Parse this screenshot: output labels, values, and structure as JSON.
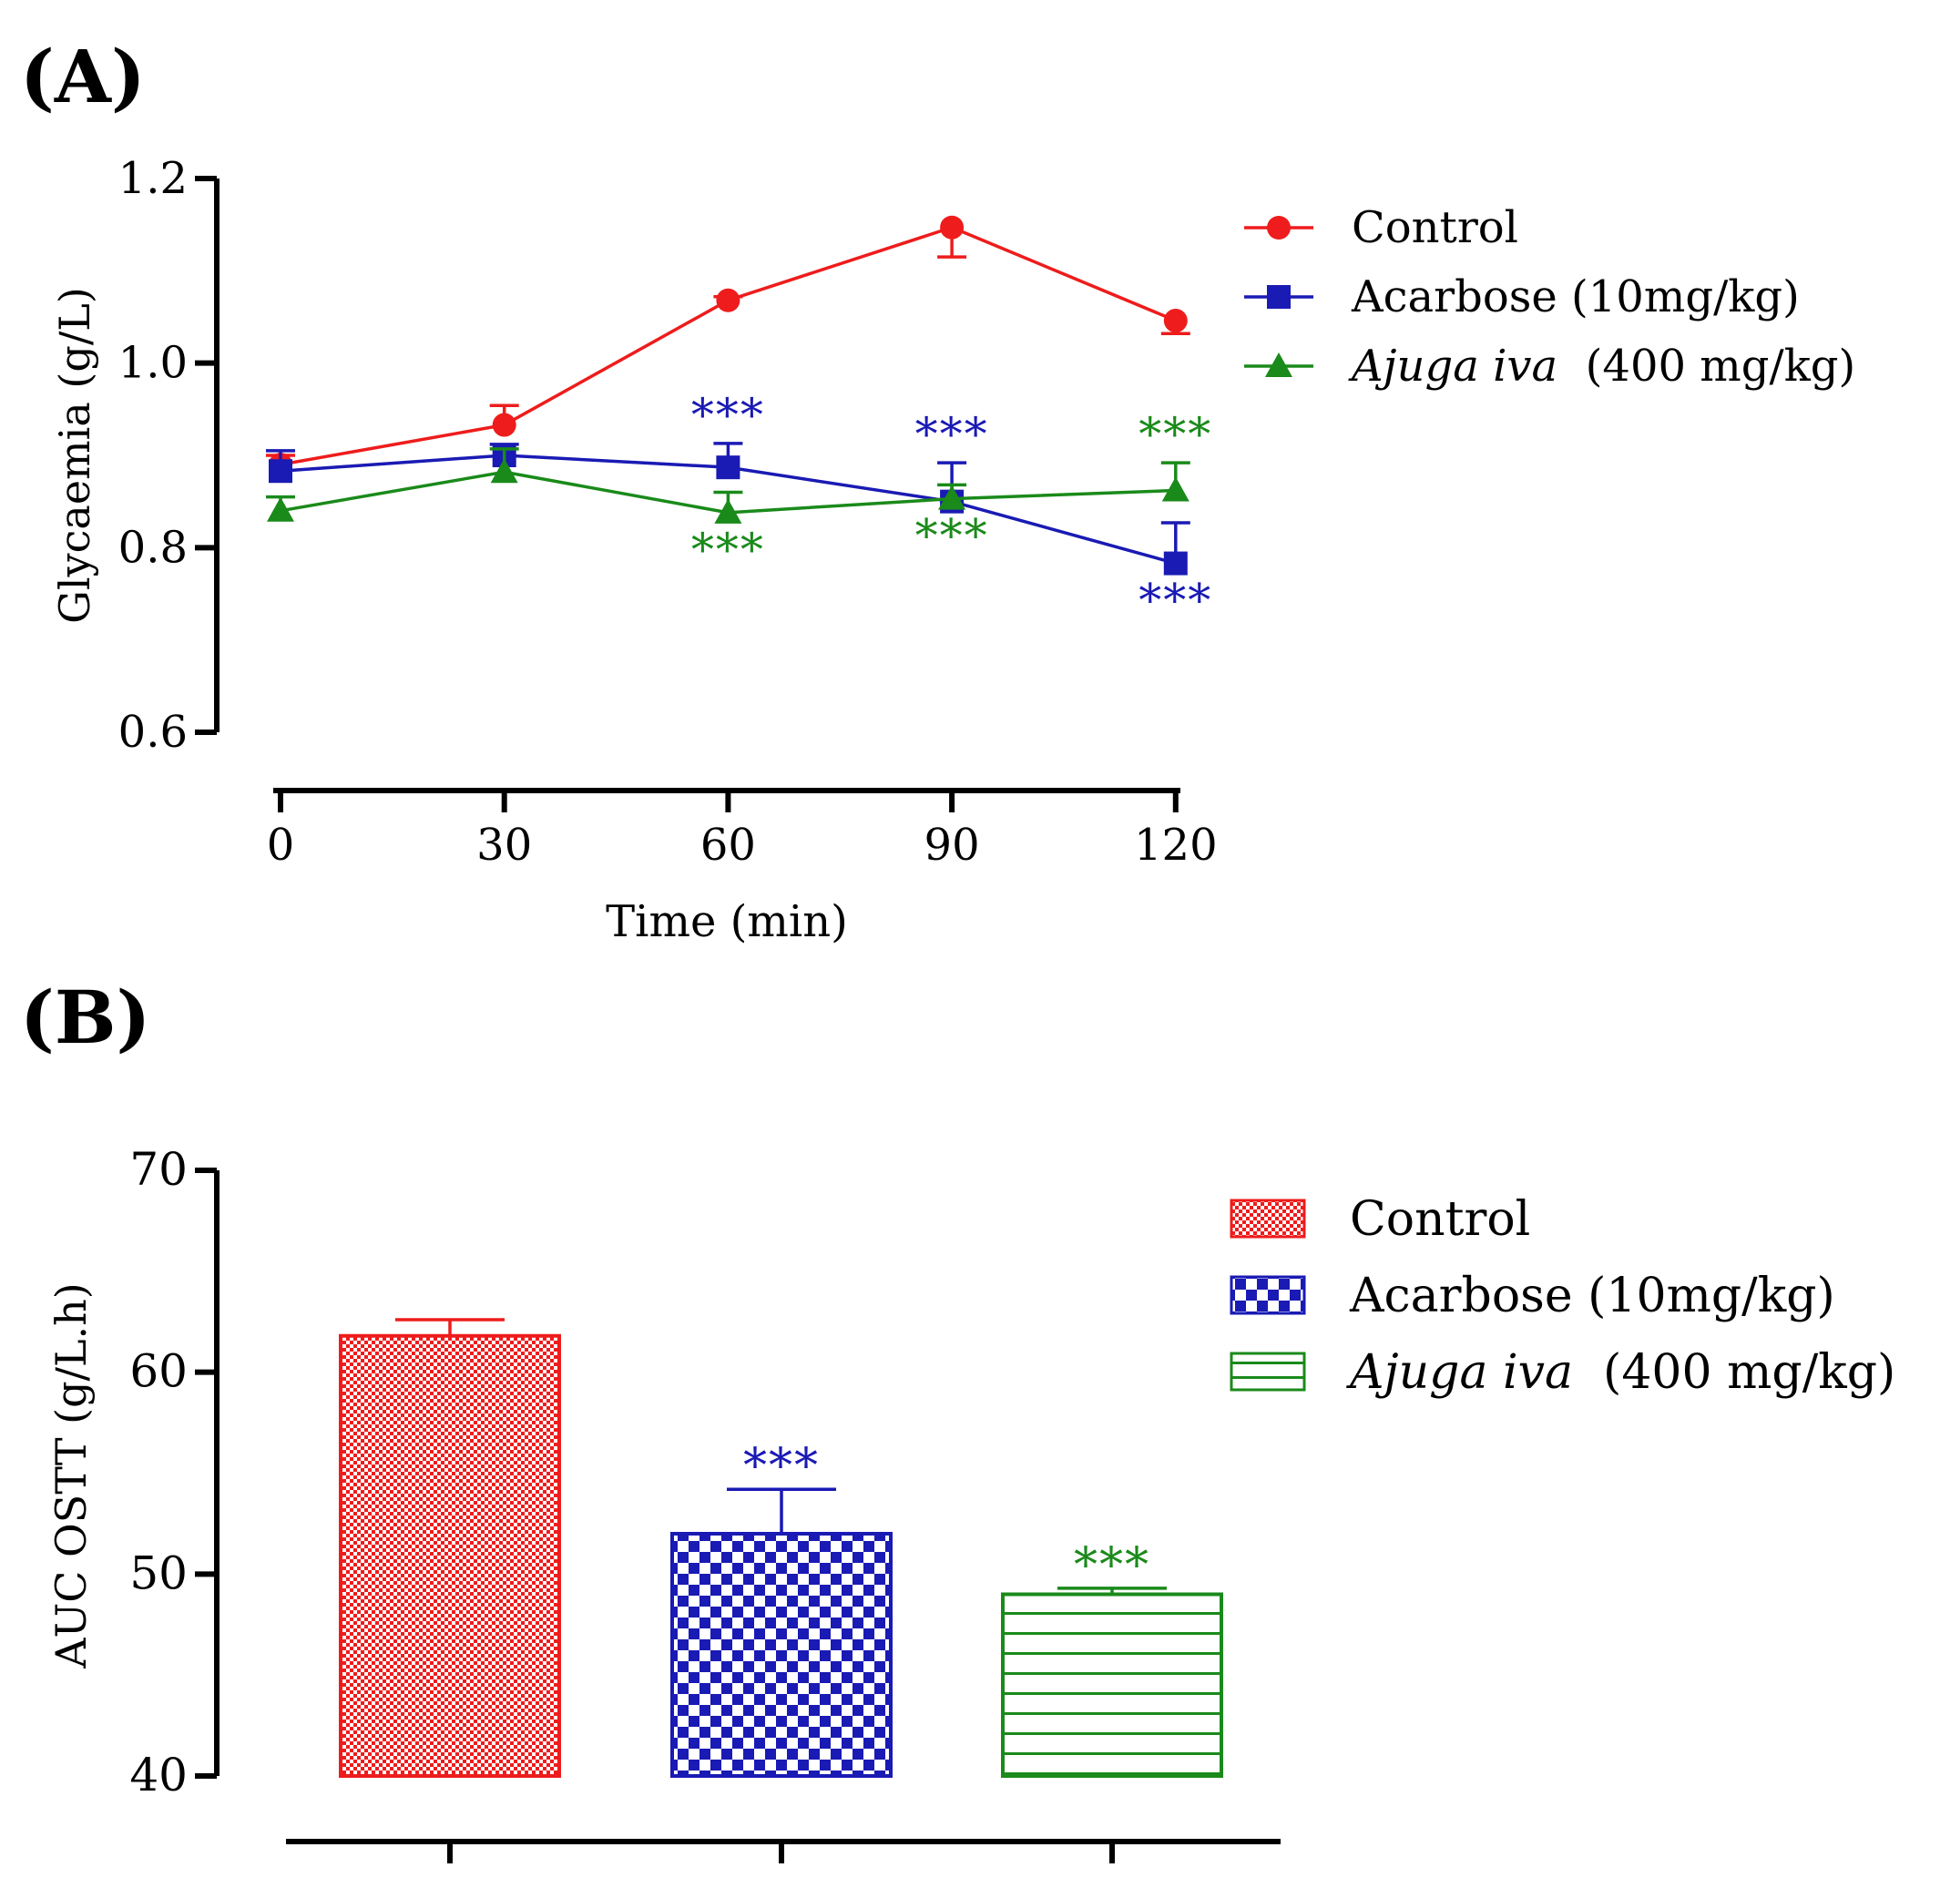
{
  "figure": {
    "panel_a_label": "(A)",
    "panel_b_label": "(B)"
  },
  "colors": {
    "control": "#ee1c1c",
    "acarbose": "#1a1ab4",
    "ajuga": "#1a8a1a",
    "axis": "#000000"
  },
  "chart_data": [
    {
      "type": "line",
      "panel": "A",
      "xlabel": "Time (min)",
      "ylabel": "Glycaemia (g/L)",
      "x": [
        0,
        30,
        60,
        90,
        120
      ],
      "xticks": [
        "0",
        "30",
        "60",
        "90",
        "120"
      ],
      "ylim": [
        0.6,
        1.2
      ],
      "yticks": [
        "0.6",
        "0.8",
        "1.0",
        "1.2"
      ],
      "yticks_values": [
        0.6,
        0.8,
        1.0,
        1.2
      ],
      "legend_position": "top-right, outside plot",
      "series": [
        {
          "key": "control",
          "name": "Control",
          "name_italic": "",
          "name_rest": "",
          "marker": "circle",
          "values": [
            0.89,
            0.933,
            1.068,
            1.147,
            1.046
          ],
          "errors": [
            0.01,
            0.021,
            0.004,
            0.032,
            0.014
          ],
          "error_dir": [
            1,
            1,
            1,
            -1,
            -1
          ],
          "stars": [
            "",
            "",
            "",
            "",
            ""
          ],
          "star_side": [
            0,
            0,
            0,
            0,
            0
          ]
        },
        {
          "key": "acarbose",
          "name": "Acarbose (10mg/kg)",
          "name_italic": "",
          "name_rest": "",
          "marker": "square",
          "values": [
            0.883,
            0.9,
            0.887,
            0.85,
            0.783
          ],
          "errors": [
            0.022,
            0.012,
            0.026,
            0.042,
            0.044
          ],
          "error_dir": [
            1,
            1,
            1,
            1,
            1
          ],
          "stars": [
            "",
            "",
            "***",
            "***",
            "***"
          ],
          "star_side": [
            0,
            0,
            1,
            1,
            -1
          ]
        },
        {
          "key": "ajuga",
          "name": "",
          "name_italic": "Ajuga iva",
          "name_rest": "  (400 mg/kg)",
          "marker": "triangle",
          "values": [
            0.84,
            0.882,
            0.838,
            0.853,
            0.862
          ],
          "errors": [
            0.015,
            0.025,
            0.022,
            0.015,
            0.03
          ],
          "error_dir": [
            1,
            1,
            1,
            1,
            1
          ],
          "stars": [
            "",
            "",
            "***",
            "***",
            "***"
          ],
          "star_side": [
            0,
            0,
            -1,
            -1,
            1
          ]
        }
      ]
    },
    {
      "type": "bar",
      "panel": "B",
      "xlabel": "",
      "ylabel": "AUC OSTT (g/L.h)",
      "categories": [
        "Control",
        "Acarbose (10mg/kg)",
        "Ajuga iva (400 mg/kg)"
      ],
      "ylim": [
        40,
        70
      ],
      "yticks": [
        "40",
        "50",
        "60",
        "70"
      ],
      "yticks_values": [
        40,
        50,
        60,
        70
      ],
      "legend_position": "top-right, outside plot",
      "series": [
        {
          "key": "control",
          "name": "Control",
          "name_italic": "",
          "name_rest": "",
          "pattern": "fine-check",
          "value": 61.8,
          "error": 0.8,
          "stars": ""
        },
        {
          "key": "acarbose",
          "name": "Acarbose (10mg/kg)",
          "name_italic": "",
          "name_rest": "",
          "pattern": "checkerboard",
          "value": 52.0,
          "error": 2.2,
          "stars": "***"
        },
        {
          "key": "ajuga",
          "name": "",
          "name_italic": "Ajuga iva",
          "name_rest": "  (400 mg/kg)",
          "pattern": "horizontal-lines",
          "value": 49.0,
          "error": 0.3,
          "stars": "***"
        }
      ]
    }
  ]
}
